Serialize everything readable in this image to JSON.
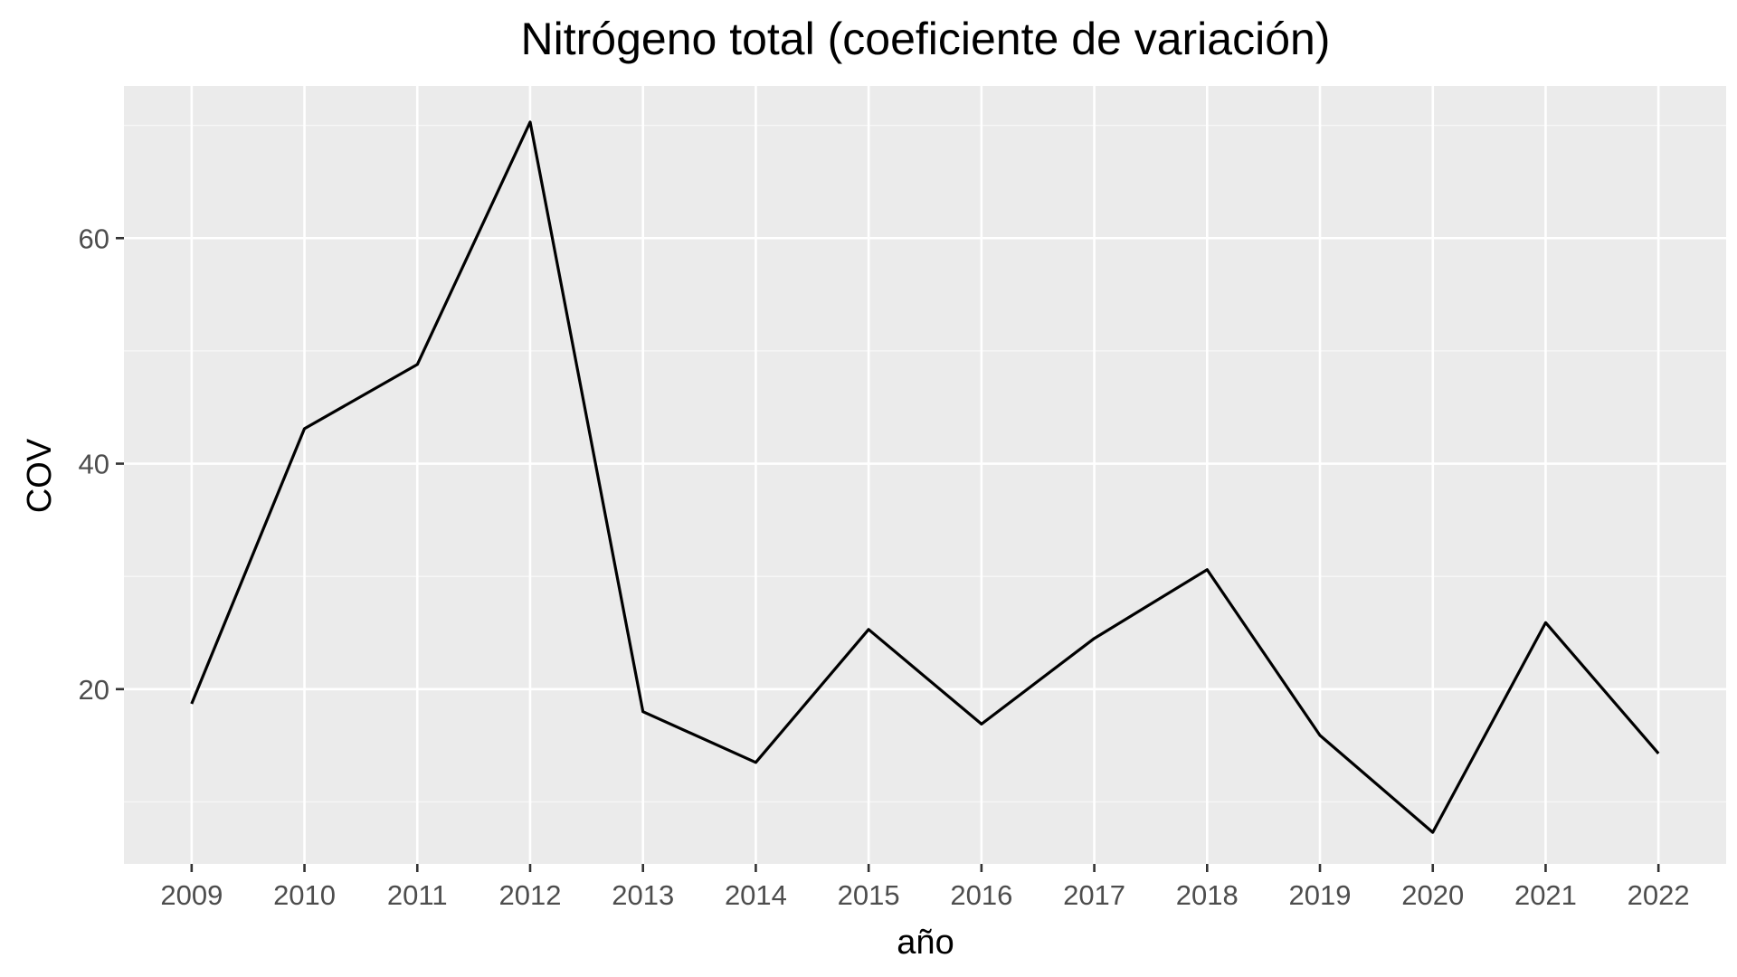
{
  "chart_data": {
    "type": "line",
    "title": "Nitrógeno total (coeficiente de variación)",
    "xlabel": "año",
    "ylabel": "COV",
    "x": [
      "2009",
      "2010",
      "2011",
      "2012",
      "2013",
      "2014",
      "2015",
      "2016",
      "2017",
      "2018",
      "2019",
      "2020",
      "2021",
      "2022"
    ],
    "series": [
      {
        "values": [
          18.7,
          43.1,
          48.8,
          70.3,
          18.0,
          13.5,
          25.3,
          16.9,
          24.5,
          30.6,
          15.9,
          7.3,
          25.9,
          14.3
        ]
      }
    ],
    "ylim": [
      4.5,
      73.5
    ],
    "yticks": [
      20,
      40,
      60
    ],
    "grid": true,
    "legend": "none",
    "colors": {
      "panel_background": "#ebebeb",
      "grid_major": "#ffffff",
      "grid_minor": "#f7f7f7",
      "line": "#000000",
      "tick_text": "#4d4d4d",
      "tick_mark": "#333333"
    }
  }
}
